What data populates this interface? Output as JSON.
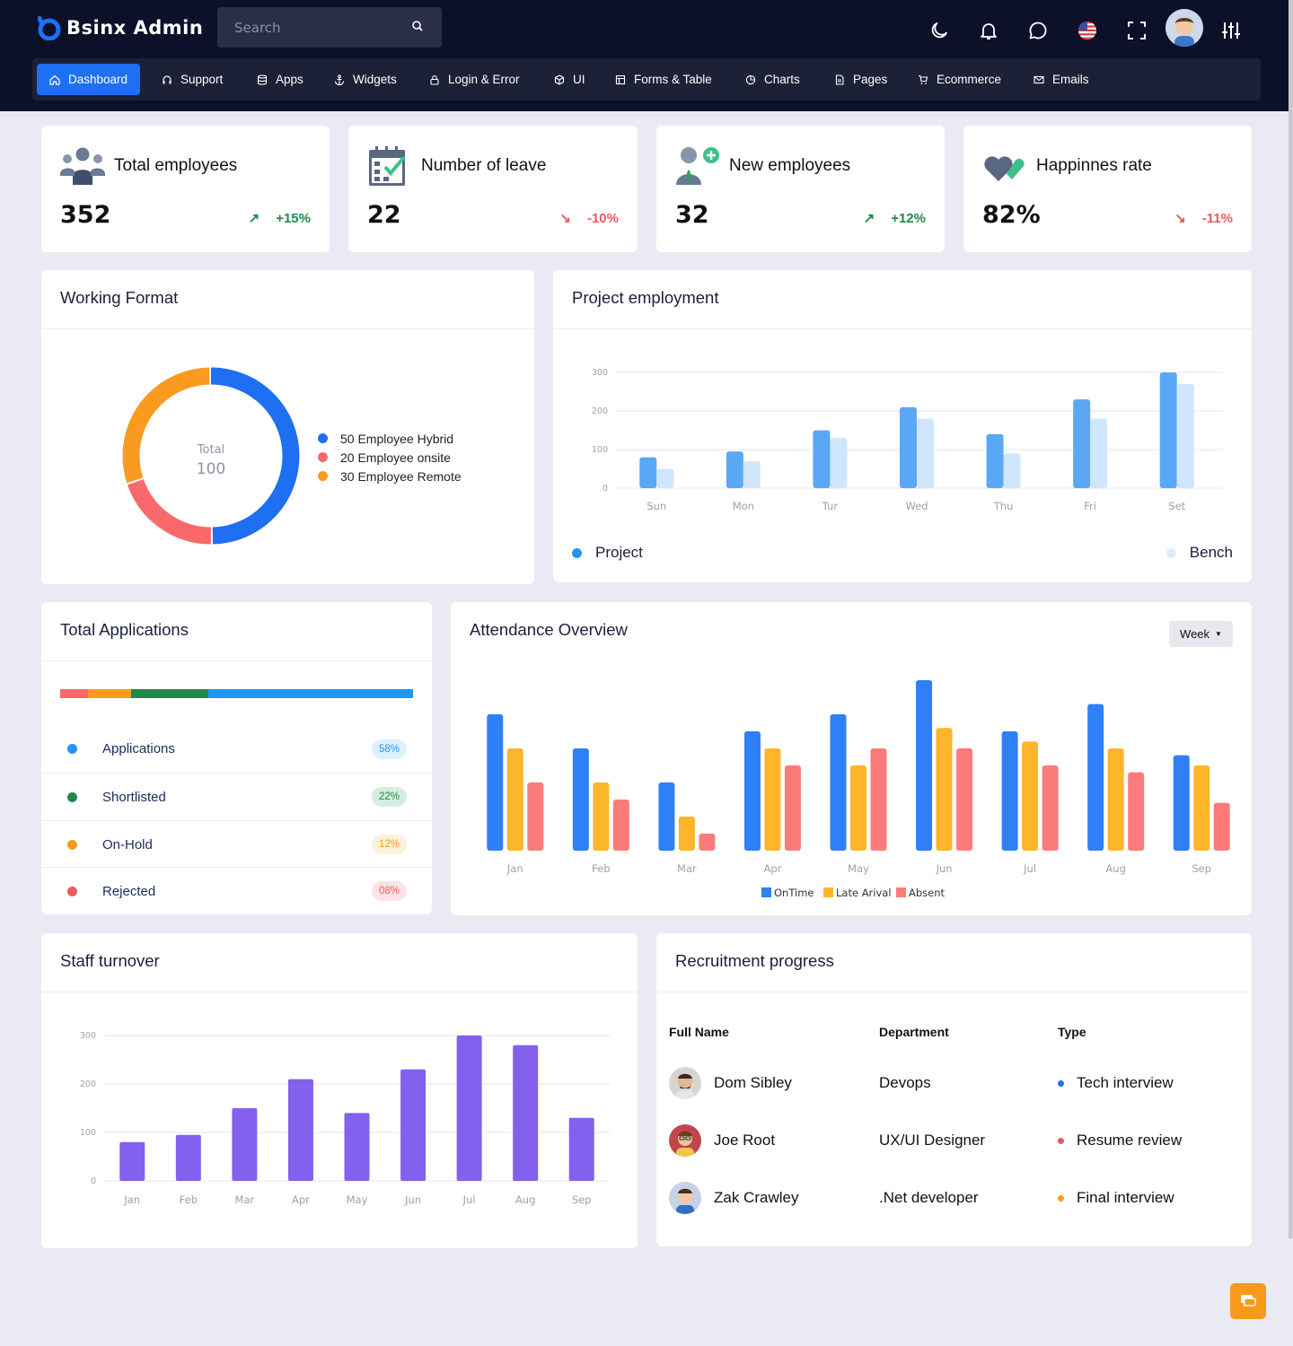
{
  "brand": {
    "name": "Bsinx Admin"
  },
  "search": {
    "placeholder": "Search"
  },
  "nav": [
    {
      "label": "Dashboard",
      "icon": "home-icon",
      "active": true
    },
    {
      "label": "Support",
      "icon": "headset-icon"
    },
    {
      "label": "Apps",
      "icon": "database-icon"
    },
    {
      "label": "Widgets",
      "icon": "anchor-icon"
    },
    {
      "label": "Login & Error",
      "icon": "lock-icon"
    },
    {
      "label": "UI",
      "icon": "cube-icon"
    },
    {
      "label": "Forms & Table",
      "icon": "table-icon"
    },
    {
      "label": "Charts",
      "icon": "pie-chart-icon"
    },
    {
      "label": "Pages",
      "icon": "document-icon"
    },
    {
      "label": "Ecommerce",
      "icon": "cart-icon"
    },
    {
      "label": "Emails",
      "icon": "mail-icon"
    }
  ],
  "stats": [
    {
      "title": "Total employees",
      "value": "352",
      "change": "+15%",
      "direction": "up",
      "icon": "users-icon"
    },
    {
      "title": "Number of leave",
      "value": "22",
      "change": "-10%",
      "direction": "down",
      "icon": "calendar-check-icon"
    },
    {
      "title": "New employees",
      "value": "32",
      "change": "+12%",
      "direction": "up",
      "icon": "user-plus-icon"
    },
    {
      "title": "Happinnes rate",
      "value": "82%",
      "change": "-11%",
      "direction": "down",
      "icon": "hearts-icon"
    }
  ],
  "working_format": {
    "title": "Working Format",
    "center_label": "Total",
    "center_value": "100",
    "legend": [
      {
        "label": "50 Employee Hybrid",
        "color": "#1f6ff2"
      },
      {
        "label": "20 Employee onsite",
        "color": "#f7696b"
      },
      {
        "label": "30 Employee Remote",
        "color": "#f89b1f"
      }
    ]
  },
  "project_employment": {
    "title": "Project employment",
    "legend_project": "Project",
    "legend_bench": "Bench"
  },
  "total_applications": {
    "title": "Total Applications",
    "items": [
      {
        "label": "Applications",
        "pct": "58%",
        "color": "#2196f3",
        "bg": "#dff0fd"
      },
      {
        "label": "Shortlisted",
        "pct": "22%",
        "color": "#1e8a47",
        "bg": "#d6ecdf"
      },
      {
        "label": "On-Hold",
        "pct": "12%",
        "color": "#f89b1f",
        "bg": "#fdf0dd"
      },
      {
        "label": "Rejected",
        "pct": "08%",
        "color": "#f0595c",
        "bg": "#fde3e3"
      }
    ],
    "segments": [
      {
        "value": 8,
        "color": "#f7696b"
      },
      {
        "value": 12,
        "color": "#f89b1f"
      },
      {
        "value": 22,
        "color": "#1e8a47"
      },
      {
        "value": 58,
        "color": "#2196f3"
      }
    ]
  },
  "attendance": {
    "title": "Attendance Overview",
    "filter": "Week"
  },
  "staff_turnover": {
    "title": "Staff turnover"
  },
  "recruitment": {
    "title": "Recruitment progress",
    "headers": {
      "name": "Full Name",
      "dept": "Department",
      "type": "Type"
    },
    "rows": [
      {
        "name": "Dom Sibley",
        "dept": "Devops",
        "type": "Tech interview",
        "color": "#1f6ff2"
      },
      {
        "name": "Joe Root",
        "dept": "UX/UI Designer",
        "type": "Resume review",
        "color": "#f0595c"
      },
      {
        "name": "Zak Crawley",
        "dept": ".Net developer",
        "type": "Final interview",
        "color": "#f89b1f"
      }
    ]
  },
  "chart_data": [
    {
      "type": "pie",
      "title": "Working Format",
      "categories": [
        "Employee Hybrid",
        "Employee onsite",
        "Employee Remote"
      ],
      "values": [
        50,
        20,
        30
      ],
      "colors": [
        "#1f6ff2",
        "#f7696b",
        "#f89b1f"
      ]
    },
    {
      "type": "bar",
      "title": "Project employment",
      "categories": [
        "Sun",
        "Mon",
        "Tur",
        "Wed",
        "Thu",
        "Fri",
        "Set"
      ],
      "series": [
        {
          "name": "Project",
          "values": [
            80,
            95,
            150,
            210,
            140,
            230,
            300
          ],
          "color": "#5aa8f5"
        },
        {
          "name": "Bench",
          "values": [
            50,
            70,
            130,
            180,
            90,
            180,
            270
          ],
          "color": "#cfe6fd"
        }
      ],
      "yticks": [
        0,
        100,
        200,
        300
      ],
      "ylim": [
        0,
        300
      ],
      "grid": true
    },
    {
      "type": "bar",
      "title": "Attendance Overview",
      "categories": [
        "Jan",
        "Feb",
        "Mar",
        "Apr",
        "May",
        "Jun",
        "Jul",
        "Aug",
        "Sep"
      ],
      "series": [
        {
          "name": "OnTime",
          "values": [
            80,
            60,
            40,
            70,
            80,
            100,
            70,
            86,
            56
          ],
          "color": "#2f80f7"
        },
        {
          "name": "Late Arival",
          "values": [
            60,
            40,
            20,
            60,
            50,
            72,
            64,
            60,
            50
          ],
          "color": "#fdb52a"
        },
        {
          "name": "Absent",
          "values": [
            40,
            30,
            10,
            50,
            60,
            60,
            50,
            46,
            28
          ],
          "color": "#fb7b7b"
        }
      ],
      "ylim": [
        0,
        100
      ],
      "legend": "bottom"
    },
    {
      "type": "bar",
      "title": "Staff turnover",
      "categories": [
        "Jan",
        "Feb",
        "Mar",
        "Apr",
        "May",
        "Jun",
        "Jul",
        "Aug",
        "Sep"
      ],
      "series": [
        {
          "values": [
            80,
            95,
            150,
            210,
            140,
            230,
            300,
            280,
            130
          ],
          "color": "#8360ed"
        }
      ],
      "yticks": [
        0,
        100,
        200,
        300
      ],
      "ylim": [
        0,
        300
      ],
      "grid": true
    }
  ]
}
